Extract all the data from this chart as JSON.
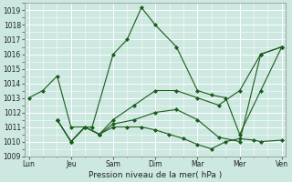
{
  "xlabel": "Pression niveau de la mer( hPa )",
  "bg_color": "#cce8e0",
  "grid_color": "#ffffff",
  "line_color": "#1a5c1a",
  "ylim": [
    1009,
    1019.5
  ],
  "yticks": [
    1009,
    1010,
    1011,
    1012,
    1013,
    1014,
    1015,
    1016,
    1017,
    1018,
    1019
  ],
  "xlabels": [
    "Lun",
    "Jeu",
    "Sam",
    "Dim",
    "Mar",
    "Mer",
    "Ven"
  ],
  "xlim": [
    -0.1,
    6.1
  ],
  "line1_x": [
    0,
    0.33,
    0.67,
    1.0,
    1.5,
    2.0,
    2.33,
    2.67,
    3.0,
    3.5,
    4.0,
    4.33,
    4.67,
    5.0,
    5.5,
    6.0
  ],
  "line1_y": [
    1013.0,
    1013.5,
    1014.5,
    1011.0,
    1011.0,
    1016.0,
    1017.0,
    1019.2,
    1018.0,
    1016.5,
    1013.5,
    1013.2,
    1013.0,
    1010.5,
    1013.5,
    1016.5
  ],
  "line2_x": [
    0.67,
    1.0,
    1.33,
    1.67,
    2.0,
    2.33,
    2.67,
    3.0,
    3.33,
    3.67,
    4.0,
    4.33,
    4.67,
    5.0,
    5.33,
    5.5,
    6.0
  ],
  "line2_y": [
    1011.5,
    1010.0,
    1011.0,
    1010.5,
    1011.0,
    1011.0,
    1011.0,
    1010.8,
    1010.5,
    1010.2,
    1009.8,
    1009.5,
    1010.0,
    1010.2,
    1010.1,
    1010.0,
    1010.1
  ],
  "line3_x": [
    0.67,
    1.0,
    1.33,
    1.67,
    2.0,
    2.5,
    3.0,
    3.5,
    4.0,
    4.5,
    5.0,
    5.5,
    6.0
  ],
  "line3_y": [
    1011.5,
    1010.0,
    1011.0,
    1010.5,
    1011.5,
    1012.5,
    1013.5,
    1013.5,
    1013.0,
    1012.5,
    1013.5,
    1016.0,
    1016.5
  ],
  "line4_x": [
    0.67,
    1.0,
    1.33,
    1.67,
    2.0,
    2.5,
    3.0,
    3.5,
    4.0,
    4.5,
    5.0,
    5.5,
    6.0
  ],
  "line4_y": [
    1011.5,
    1010.0,
    1011.0,
    1010.5,
    1011.2,
    1011.5,
    1012.0,
    1012.2,
    1011.5,
    1010.3,
    1010.0,
    1016.0,
    1016.5
  ],
  "marker": "D",
  "markersize": 2.0,
  "linewidth": 0.8
}
